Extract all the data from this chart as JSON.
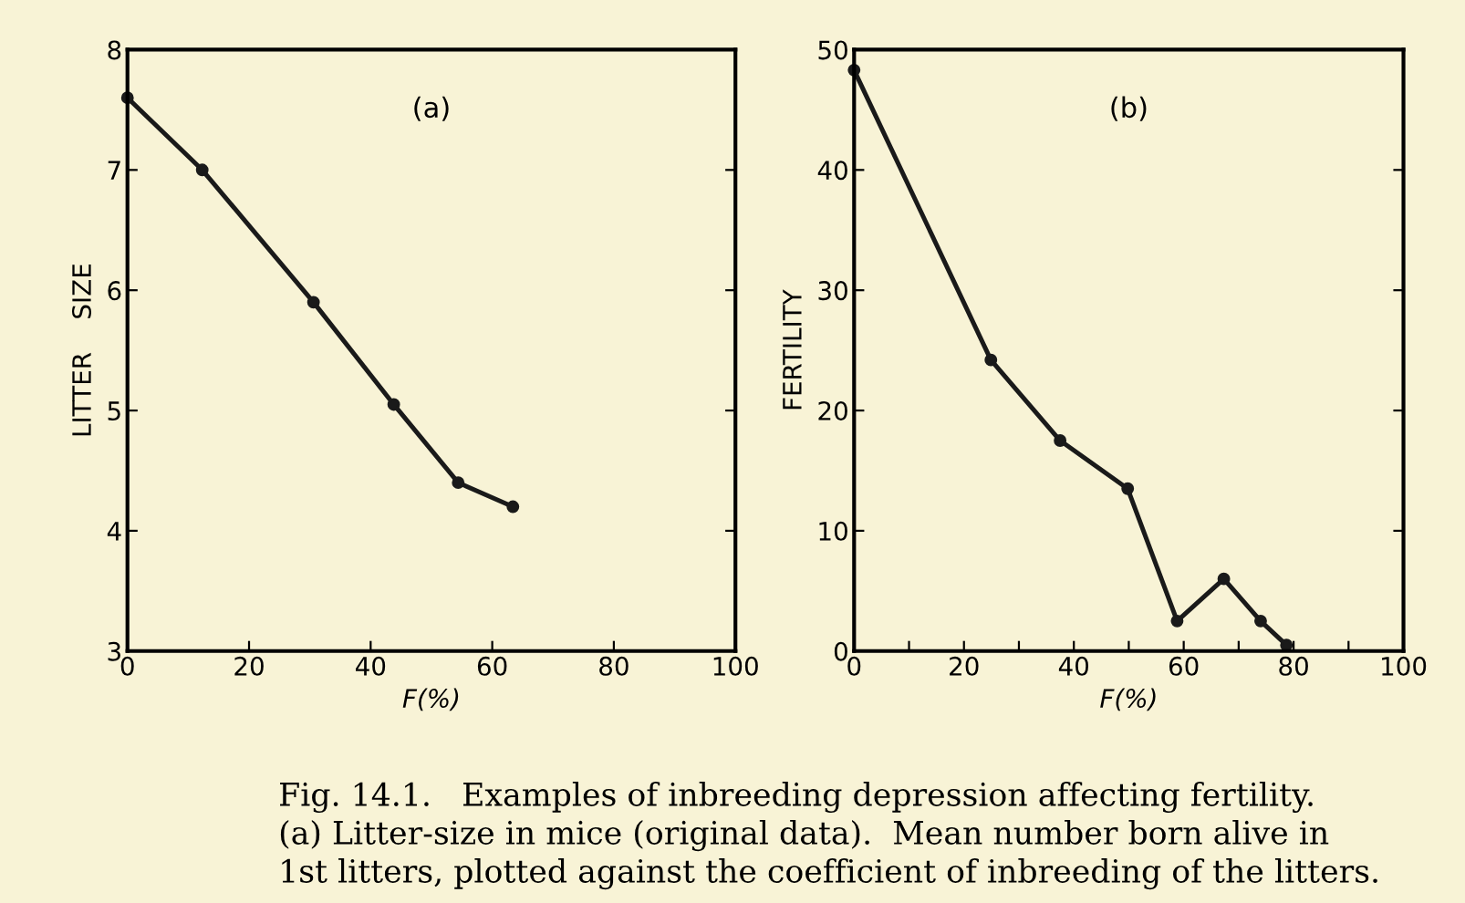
{
  "chart_data": [
    {
      "type": "line",
      "xlabel": "F(%)",
      "ylabel": "LITTER    SIZE",
      "x": [
        0,
        12.3,
        30.6,
        43.8,
        54.4,
        63.4
      ],
      "series": [
        {
          "color": "#1a1a1a",
          "values": [
            7.6,
            7.0,
            5.9,
            5.05,
            4.4,
            4.2
          ]
        }
      ],
      "marker": "circle",
      "line_style": "solid",
      "xlim": [
        0,
        100
      ],
      "ylim": [
        3,
        8
      ],
      "xticks": [
        0,
        20,
        40,
        60,
        80,
        100
      ],
      "yticks": [
        3,
        4,
        5,
        6,
        7,
        8
      ],
      "grid": false,
      "legend": false,
      "annotations": [
        "(a)",
        "Fig. 14.1.   Examples of inbreeding depression affecting fertility.\n(a) Litter-size in mice (original data).  Mean number born alive in\n1st litters, plotted against the coefficient of inbreeding of the litters."
      ]
    },
    {
      "type": "line",
      "xlabel": "F(%)",
      "ylabel": "FERTILITY",
      "x": [
        0,
        24.9,
        37.5,
        49.8,
        58.8,
        67.3,
        74,
        78.7
      ],
      "series": [
        {
          "color": "#1a1a1a",
          "values": [
            48.3,
            24.2,
            17.5,
            13.5,
            2.5,
            6,
            2.5,
            0.5
          ]
        }
      ],
      "marker": "circle",
      "line_style": "solid",
      "xlim": [
        0,
        100
      ],
      "ylim": [
        0,
        50
      ],
      "xticks": [
        0,
        {
          "value": 10,
          "label": null
        },
        20,
        {
          "value": 30,
          "label": null
        },
        40,
        {
          "value": 50,
          "label": null
        },
        60,
        {
          "value": 70,
          "label": null
        },
        80,
        {
          "value": 90,
          "label": null
        },
        100
      ],
      "yticks": [
        0,
        10,
        20,
        30,
        40,
        50
      ],
      "grid": false,
      "legend": false,
      "annotations": [
        "(b)"
      ]
    }
  ]
}
